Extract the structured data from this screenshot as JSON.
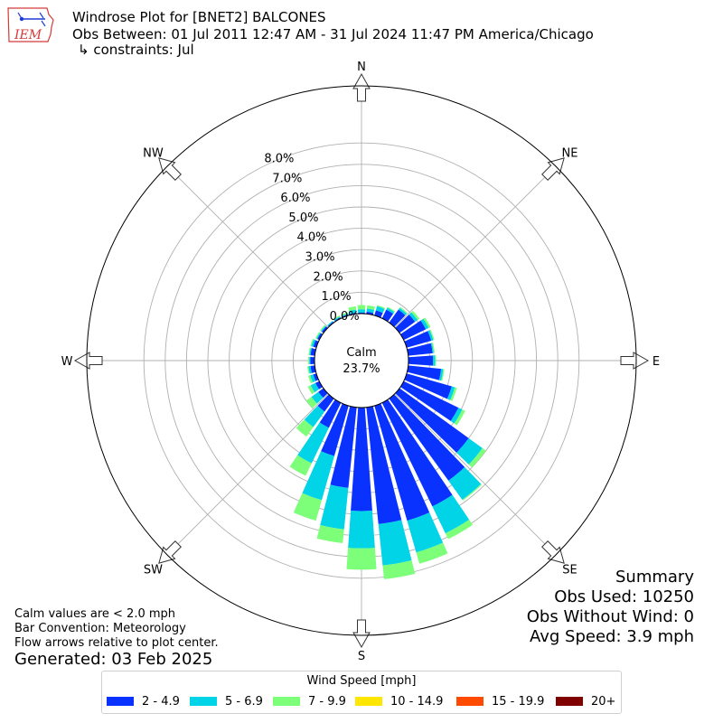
{
  "logo": {
    "text": "IEM"
  },
  "header": {
    "title": "Windrose Plot for [BNET2] BALCONES",
    "obs_between": "Obs Between: 01 Jul 2011 12:47 AM - 31 Jul 2024 11:47 PM America/Chicago",
    "constraints": "↳ constraints: Jul"
  },
  "notes": {
    "calm_values": "Calm values are < 2.0 mph",
    "bar_convention": "Bar Convention: Meteorology",
    "flow_arrows": "Flow arrows relative to plot center.",
    "generated": "Generated: 03 Feb 2025"
  },
  "summary": {
    "title": "Summary",
    "obs_used": "Obs Used: 10250",
    "obs_without_wind": "Obs Without Wind: 0",
    "avg_speed": "Avg Speed: 3.9 mph"
  },
  "chart_data": {
    "type": "windrose",
    "calm_label": "Calm",
    "calm_value": "23.7%",
    "radial_ticks": [
      "0.0%",
      "1.0%",
      "2.0%",
      "3.0%",
      "4.0%",
      "5.0%",
      "6.0%",
      "7.0%",
      "8.0%"
    ],
    "directions": [
      "N",
      "NE",
      "E",
      "SE",
      "S",
      "SW",
      "W",
      "NW"
    ],
    "legend_title": "Wind Speed [mph]",
    "speed_bins": [
      {
        "label": "2 - 4.9",
        "color": "#0a32ff"
      },
      {
        "label": "5 - 6.9",
        "color": "#00d4e6"
      },
      {
        "label": "7 - 9.9",
        "color": "#7dff7a"
      },
      {
        "label": "10 - 14.9",
        "color": "#ffe600"
      },
      {
        "label": "15 - 19.9",
        "color": "#ff4a00"
      },
      {
        "label": "20+",
        "color": "#800000"
      }
    ],
    "sectors_deg": [
      0,
      10,
      20,
      30,
      40,
      50,
      60,
      70,
      80,
      90,
      100,
      110,
      120,
      130,
      140,
      150,
      160,
      170,
      180,
      190,
      200,
      210,
      220,
      230,
      240,
      250,
      260,
      270,
      280,
      290,
      300,
      310,
      320,
      330,
      340,
      350
    ],
    "cumulative_pct": [
      [
        0.05,
        0.2,
        0.4
      ],
      [
        0.1,
        0.25,
        0.4
      ],
      [
        0.25,
        0.45,
        0.5
      ],
      [
        0.45,
        0.55,
        0.6
      ],
      [
        0.75,
        0.85,
        0.9
      ],
      [
        0.9,
        1.05,
        1.15
      ],
      [
        1.15,
        1.3,
        1.4
      ],
      [
        1.2,
        1.3,
        1.35
      ],
      [
        1.15,
        1.2,
        1.25
      ],
      [
        1.15,
        1.25,
        1.3
      ],
      [
        1.55,
        1.65,
        1.7
      ],
      [
        2.2,
        2.35,
        2.45
      ],
      [
        2.85,
        3.05,
        3.2
      ],
      [
        4.0,
        4.8,
        5.0
      ],
      [
        4.75,
        5.85,
        5.9
      ],
      [
        5.4,
        6.8,
        7.1
      ],
      [
        5.6,
        7.15,
        7.7
      ],
      [
        5.5,
        7.45,
        8.1
      ],
      [
        4.85,
        6.6,
        7.6
      ],
      [
        3.8,
        5.75,
        6.4
      ],
      [
        2.45,
        4.6,
        5.6
      ],
      [
        1.3,
        3.15,
        3.8
      ],
      [
        0.75,
        1.65,
        2.2
      ],
      [
        0.3,
        0.7,
        1.0
      ],
      [
        0.2,
        0.45,
        0.6
      ],
      [
        0.15,
        0.3,
        0.4
      ],
      [
        0.2,
        0.3,
        0.35
      ],
      [
        0.2,
        0.25,
        0.3
      ],
      [
        0.2,
        0.25,
        0.3
      ],
      [
        0.15,
        0.25,
        0.3
      ],
      [
        0.1,
        0.15,
        0.2
      ],
      [
        0.1,
        0.15,
        0.2
      ],
      [
        0.05,
        0.1,
        0.1
      ],
      [
        0.05,
        0.1,
        0.15
      ],
      [
        0.05,
        0.1,
        0.15
      ],
      [
        0.05,
        0.2,
        0.35
      ]
    ]
  }
}
